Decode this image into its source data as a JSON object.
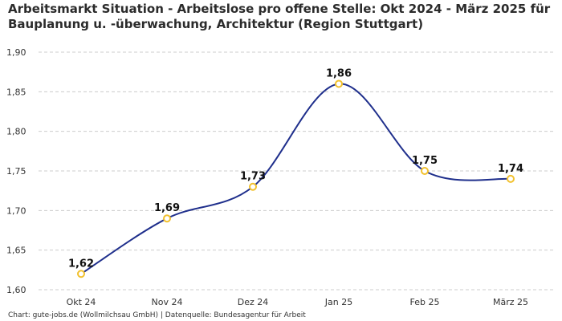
{
  "title_line1": "Arbeitsmarkt Situation - Arbeitslose pro offene Stelle: Okt 2024 - März 2025 für",
  "title_line2": "Bauplanung u. -überwachung, Architektur (Region Stuttgart)",
  "footer": "Chart: gute-jobs.de (Wollmilchsau GmbH) | Datenquelle: Bundesagentur für Arbeit",
  "colors": {
    "line": "#1f2f8c",
    "marker_edge": "#f2c12e",
    "marker_fill": "#ffffff",
    "grid": "#cccccc"
  },
  "chart_data": {
    "type": "line",
    "title": "Arbeitsmarkt Situation - Arbeitslose pro offene Stelle: Okt 2024 - März 2025 für Bauplanung u. -überwachung, Architektur (Region Stuttgart)",
    "categories": [
      "Okt 24",
      "Nov 24",
      "Dez 24",
      "Jan 25",
      "Feb 25",
      "März 25"
    ],
    "values": [
      1.62,
      1.69,
      1.73,
      1.86,
      1.75,
      1.74
    ],
    "data_labels": [
      "1,62",
      "1,69",
      "1,73",
      "1,86",
      "1,75",
      "1,74"
    ],
    "y_ticks": [
      1.6,
      1.65,
      1.7,
      1.75,
      1.8,
      1.85,
      1.9
    ],
    "y_tick_labels": [
      "1,60",
      "1,65",
      "1,70",
      "1,75",
      "1,80",
      "1,85",
      "1,90"
    ],
    "ylim": [
      1.6,
      1.9
    ],
    "xlabel": "",
    "ylabel": "",
    "grid": true,
    "smooth": true
  }
}
